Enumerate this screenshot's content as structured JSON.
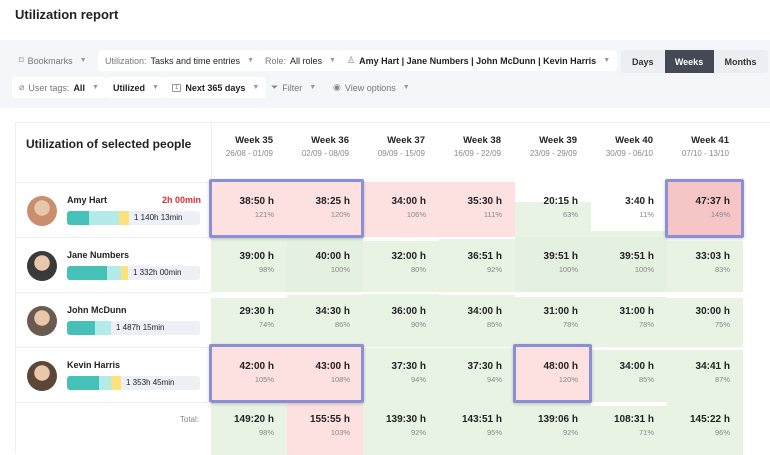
{
  "title": "Utilization report",
  "filters": {
    "bookmarks": "Bookmarks",
    "utilization_label": "Utilization:",
    "utilization_value": "Tasks and time entries",
    "role_label": "Role:",
    "role_value": "All roles",
    "people": "Amy Hart | Jane Numbers | John McDunn | Kevin Harris",
    "tags_label": "User tags:",
    "tags_value": "All",
    "utilized": "Utilized",
    "range": "Next 365 days",
    "filter": "Filter",
    "view_options": "View options"
  },
  "periods": [
    "Days",
    "Weeks",
    "Months"
  ],
  "active_period": "Weeks",
  "heading": "Utilization of selected people",
  "weeks": [
    {
      "name": "Week 35",
      "dates": "26/08 - 01/09"
    },
    {
      "name": "Week 36",
      "dates": "02/09 - 08/09"
    },
    {
      "name": "Week 37",
      "dates": "09/09 - 15/09"
    },
    {
      "name": "Week 38",
      "dates": "16/09 - 22/09"
    },
    {
      "name": "Week 39",
      "dates": "23/09 - 29/09"
    },
    {
      "name": "Week 40",
      "dates": "30/09 - 06/10"
    },
    {
      "name": "Week 41",
      "dates": "07/10 - 13/10"
    }
  ],
  "people": [
    {
      "name": "Amy Hart",
      "overtime": "2h 00min",
      "total": "1 140h 13min",
      "bar": [
        22,
        30,
        10
      ],
      "avatar": "#c98e6e",
      "cells": [
        [
          "38:50 h",
          "121%",
          121
        ],
        [
          "38:25 h",
          "120%",
          120
        ],
        [
          "34:00 h",
          "106%",
          106
        ],
        [
          "35:30 h",
          "111%",
          111
        ],
        [
          "20:15 h",
          "63%",
          63
        ],
        [
          "3:40 h",
          "11%",
          11
        ],
        [
          "47:37 h",
          "149%",
          149
        ]
      ]
    },
    {
      "name": "Jane Numbers",
      "overtime": "",
      "total": "1 332h 00min",
      "bar": [
        40,
        14,
        7
      ],
      "avatar": "#3a3a3a",
      "cells": [
        [
          "39:00 h",
          "98%",
          98
        ],
        [
          "40:00 h",
          "100%",
          100
        ],
        [
          "32:00 h",
          "80%",
          80
        ],
        [
          "36:51 h",
          "92%",
          92
        ],
        [
          "39:51 h",
          "100%",
          100
        ],
        [
          "39:51 h",
          "100%",
          100
        ],
        [
          "33:03 h",
          "83%",
          83
        ]
      ]
    },
    {
      "name": "John McDunn",
      "overtime": "",
      "total": "1 487h 15min",
      "bar": [
        28,
        16,
        0
      ],
      "avatar": "#6b5a50",
      "cells": [
        [
          "29:30 h",
          "74%",
          74
        ],
        [
          "34:30 h",
          "86%",
          86
        ],
        [
          "36:00 h",
          "90%",
          90
        ],
        [
          "34:00 h",
          "85%",
          85
        ],
        [
          "31:00 h",
          "78%",
          78
        ],
        [
          "31:00 h",
          "78%",
          78
        ],
        [
          "30:00 h",
          "75%",
          75
        ]
      ]
    },
    {
      "name": "Kevin Harris",
      "overtime": "",
      "total": "1 353h 45min",
      "bar": [
        32,
        12,
        10
      ],
      "avatar": "#5b4638",
      "cells": [
        [
          "42:00 h",
          "105%",
          105
        ],
        [
          "43:00 h",
          "108%",
          108
        ],
        [
          "37:30 h",
          "94%",
          94
        ],
        [
          "37:30 h",
          "94%",
          94
        ],
        [
          "48:00 h",
          "120%",
          120
        ],
        [
          "34:00 h",
          "85%",
          85
        ],
        [
          "34:41 h",
          "87%",
          87
        ]
      ]
    }
  ],
  "total_label": "Total:",
  "totals": [
    [
      "149:20 h",
      "98%",
      98
    ],
    [
      "155:55 h",
      "103%",
      103
    ],
    [
      "139:30 h",
      "92%",
      92
    ],
    [
      "143:51 h",
      "95%",
      95
    ],
    [
      "139:06 h",
      "92%",
      92
    ],
    [
      "108:31 h",
      "71%",
      71
    ],
    [
      "145:22 h",
      "96%",
      96
    ]
  ]
}
